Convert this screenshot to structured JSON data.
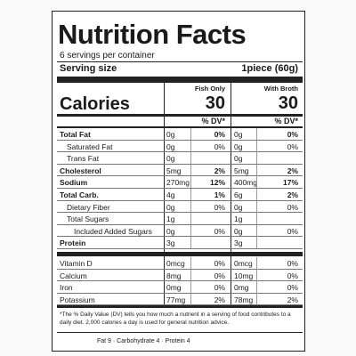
{
  "title": "Nutrition Facts",
  "servings": "6 servings per container",
  "serving_size_label": "Serving size",
  "serving_size": "1piece (60g)",
  "calories_label": "Calories",
  "columns": [
    {
      "name": "Fish Only",
      "calories": "30",
      "dv_header": "% DV*"
    },
    {
      "name": "With Broth",
      "calories": "30",
      "dv_header": "% DV*"
    }
  ],
  "table": {
    "rows": [
      {
        "name": "Total Fat",
        "bold": true,
        "indent": 0,
        "fish": "0g",
        "fish_dv": "0%",
        "broth": "0g",
        "broth_dv": "0%"
      },
      {
        "name": "Saturated Fat",
        "bold": false,
        "indent": 1,
        "fish": "0g",
        "fish_dv": "0%",
        "broth": "0g",
        "broth_dv": "0%"
      },
      {
        "name": "Trans Fat",
        "bold": false,
        "indent": 1,
        "fish": "0g",
        "broth": "0g"
      },
      {
        "name": "Cholesterol",
        "bold": true,
        "indent": 0,
        "fish": "5mg",
        "fish_dv": "2%",
        "broth": "5mg",
        "broth_dv": "2%"
      },
      {
        "name": "Sodium",
        "bold": true,
        "indent": 0,
        "fish": "270mg",
        "fish_dv": "12%",
        "broth": "400mg",
        "broth_dv": "17%"
      },
      {
        "name": "Total Carb.",
        "bold": true,
        "indent": 0,
        "fish": "4g",
        "fish_dv": "1%",
        "broth": "6g",
        "broth_dv": "2%"
      },
      {
        "name": "Dietary Fiber",
        "bold": false,
        "indent": 1,
        "fish": "0g",
        "fish_dv": "0%",
        "broth": "0g",
        "broth_dv": "0%"
      },
      {
        "name": "Total Sugars",
        "bold": false,
        "indent": 1,
        "fish": "1g",
        "broth": "1g"
      },
      {
        "name": "Included Added Sugars",
        "bold": false,
        "indent": 2,
        "fish": "0g",
        "fish_dv": "0%",
        "broth": "0g",
        "broth_dv": "0%"
      },
      {
        "name": "Protein",
        "bold": true,
        "indent": 0,
        "fish": "3g",
        "broth": "3g"
      }
    ]
  },
  "vitamins": {
    "rows": [
      {
        "name": "Vitamin D",
        "bold": false,
        "indent": 0,
        "fish": "0mcg",
        "fish_dv": "0%",
        "broth": "0mcg",
        "broth_dv": "0%"
      },
      {
        "name": "Calcium",
        "bold": false,
        "indent": 0,
        "fish": "8mg",
        "fish_dv": "0%",
        "broth": "10mg",
        "broth_dv": "0%"
      },
      {
        "name": "Iron",
        "bold": false,
        "indent": 0,
        "fish": "0mg",
        "fish_dv": "0%",
        "broth": "0mg",
        "broth_dv": "0%"
      },
      {
        "name": "Potassium",
        "bold": false,
        "indent": 0,
        "fish": "77mg",
        "fish_dv": "2%",
        "broth": "78mg",
        "broth_dv": "2%"
      }
    ]
  },
  "footnote": "*The % Daily Value (DV) tells you how much a nutrient in a serving of food contributes to a daily diet. 2,000 calories a day is used for general nutrition advice.",
  "calories_per_gram": "Fat 9 · Carbohydrate 4 · Protein 4"
}
